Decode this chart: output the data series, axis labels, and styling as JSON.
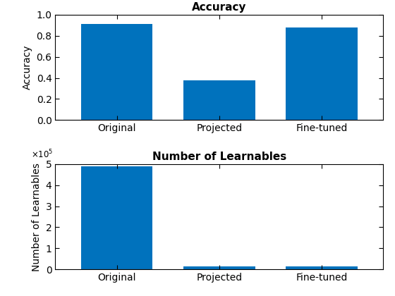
{
  "categories": [
    "Original",
    "Projected",
    "Fine-tuned"
  ],
  "accuracy_values": [
    0.91,
    0.38,
    0.88
  ],
  "learnables_values": [
    490000,
    15000,
    15000
  ],
  "bar_color": "#0072BD",
  "accuracy_title": "Accuracy",
  "accuracy_ylabel": "Accuracy",
  "learnables_title": "Number of Learnables",
  "learnables_ylabel": "Number of Learnables",
  "accuracy_ylim": [
    0,
    1.0
  ],
  "learnables_ylim": [
    0,
    500000
  ],
  "background_color": "#ffffff",
  "title_fontsize": 11,
  "label_fontsize": 10,
  "tick_fontsize": 10
}
